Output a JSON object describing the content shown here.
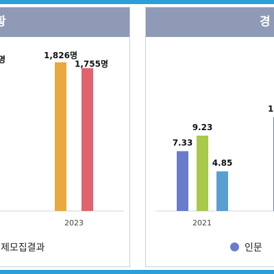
{
  "panels": {
    "left": {
      "title_visible": "황"
    },
    "right": {
      "title_visible": "경"
    }
  },
  "chart_data": [
    {
      "type": "bar",
      "categories": [
        "2023"
      ],
      "series": [
        {
          "name": "",
          "color": "#eaa93f",
          "values": [
            1826
          ],
          "label": "1,826명"
        },
        {
          "name": "",
          "color": "#e0636d",
          "values": [
            1755
          ],
          "label": "1,755명"
        }
      ],
      "clipped_label_left": "명",
      "legend": [
        {
          "label": "제모집결과",
          "color": ""
        }
      ],
      "ylim": [
        0,
        2000
      ]
    },
    {
      "type": "bar",
      "categories": [
        "2021"
      ],
      "series": [
        {
          "name": "인문",
          "color": "#6b7bcc",
          "values": [
            7.33
          ],
          "label": "7.33"
        },
        {
          "name": "",
          "color": "#a9c94a",
          "values": [
            9.23
          ],
          "label": "9.23"
        },
        {
          "name": "",
          "color": "#5a9fcf",
          "values": [
            4.85
          ],
          "label": "4.85"
        }
      ],
      "clipped_label_right": "1",
      "clipped_bar_color": "#6b7bcc",
      "legend": [
        {
          "label": "인문",
          "color": "#6b7bcc"
        }
      ],
      "ylim": [
        0,
        12
      ]
    }
  ]
}
